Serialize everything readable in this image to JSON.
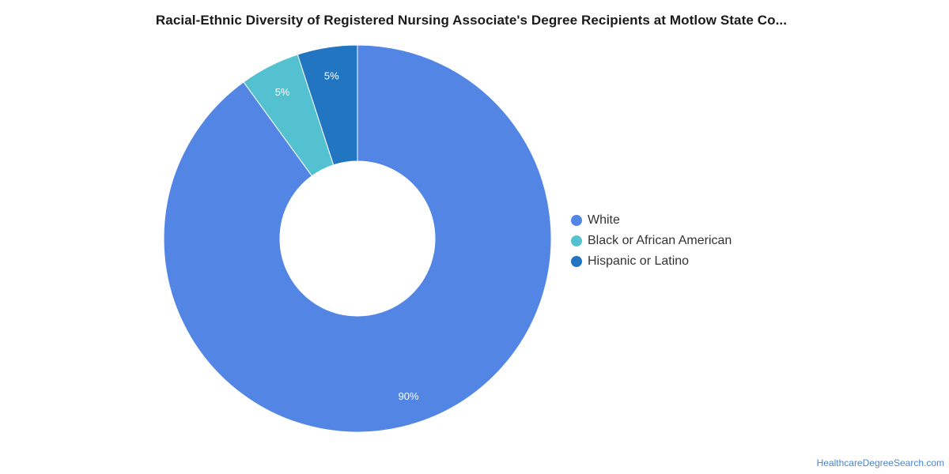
{
  "chart_data": {
    "type": "pie",
    "variant": "donut",
    "title": "Racial-Ethnic Diversity of Registered Nursing Associate's Degree Recipients at Motlow State Co...",
    "categories": [
      "White",
      "Black or African American",
      "Hispanic or Latino"
    ],
    "values": [
      90,
      5,
      5
    ],
    "labels": [
      "90%",
      "5%",
      "5%"
    ],
    "colors": [
      "#5386e4",
      "#54c1d0",
      "#2175c1"
    ],
    "legend_position": "right"
  },
  "footer": {
    "source": "HealthcareDegreeSearch.com"
  }
}
